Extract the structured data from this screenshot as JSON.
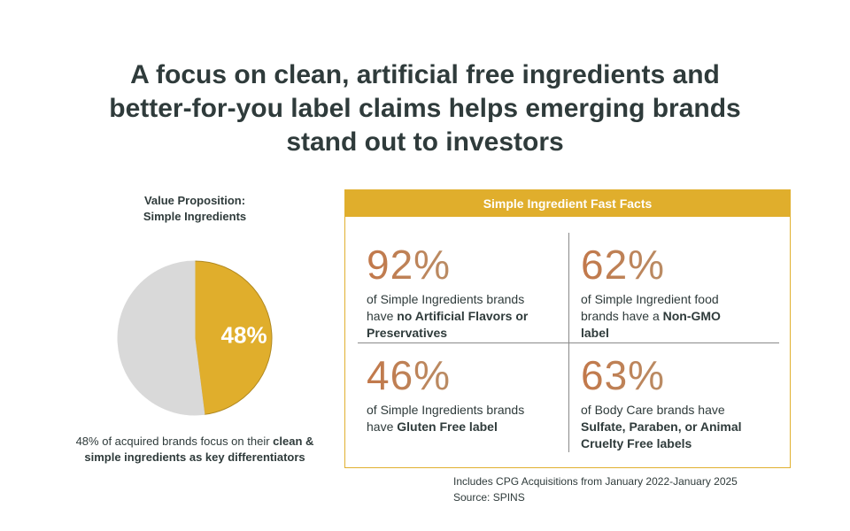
{
  "title": {
    "line1": "A focus on clean, artificial free ingredients and",
    "line2": "better-for-you label claims helps emerging brands",
    "line3": "stand out to investors"
  },
  "chart_data": {
    "type": "pie",
    "title": "Value Proposition: Simple Ingredients",
    "title_lines": [
      "Value Proposition:",
      "Simple Ingredients"
    ],
    "slices": [
      {
        "value": 48,
        "label": "48%",
        "color": "#e0ae2c"
      },
      {
        "value": 52,
        "label": "",
        "color": "#d9d9d9"
      }
    ],
    "caption": {
      "normal": "48% of acquired brands focus on their ",
      "bold_1": "clean &",
      "bold_2": "simple ingredients as key differentiators"
    }
  },
  "facts_panel": {
    "header": "Simple Ingredient Fast Facts",
    "facts": [
      {
        "percent": "92%",
        "text_1": "of Simple Ingredients brands",
        "text_2": "have ",
        "bold_1": "no Artificial Flavors or",
        "bold_2": "Preservatives"
      },
      {
        "percent": "62%",
        "text_1": "of Simple Ingredient food",
        "text_2": "brands have a ",
        "bold_1": "Non-GMO",
        "bold_2": "label"
      },
      {
        "percent": "46%",
        "text_1": "of Simple Ingredients brands",
        "text_2": "have ",
        "bold_1": "Gluten Free label",
        "bold_2": ""
      },
      {
        "percent": "63%",
        "text_1": "of Body Care brands have",
        "text_2": "",
        "bold_1": "Sulfate, Paraben, or Animal",
        "bold_2": "Cruelty Free labels"
      }
    ]
  },
  "footnote": {
    "line1": "Includes CPG Acquisitions from January 2022-January 2025",
    "line2": "Source: SPINS"
  },
  "colors": {
    "accent": "#e0ae2c",
    "pie_rest": "#d9d9d9",
    "text": "#2f3b3b"
  }
}
